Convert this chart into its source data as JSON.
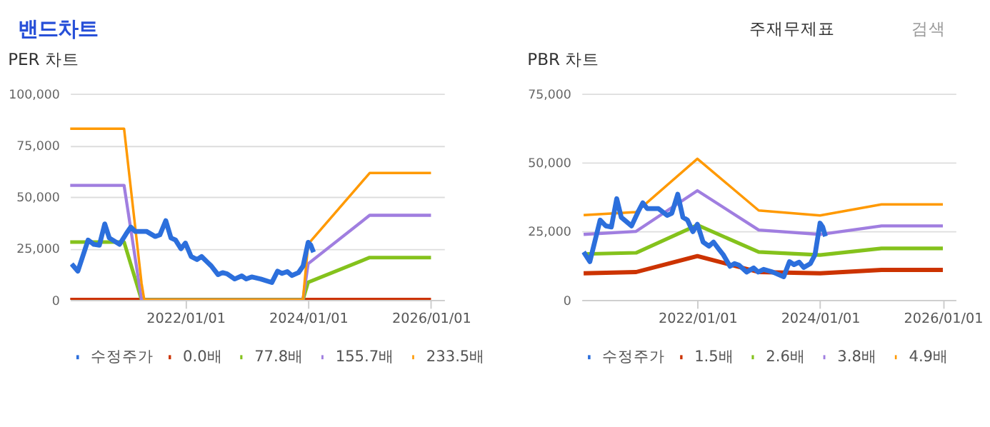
{
  "chart_data": [
    {
      "type": "other",
      "title": "밴드차트",
      "annotations": [
        "주재무제표",
        "검색"
      ]
    },
    {
      "type": "line",
      "title": "PER 차트",
      "xlim": [
        "2020-02-15",
        "2026-03-20"
      ],
      "ylim": [
        0,
        100000
      ],
      "xticks": [
        {
          "value": "2022-01-01",
          "label": "2022/01/01"
        },
        {
          "value": "2024-01-01",
          "label": "2024/01/01"
        },
        {
          "value": "2026-01-01",
          "label": "2026/01/01"
        }
      ],
      "yticks": [
        0,
        {
          "value": 25000,
          "label": "25,000"
        },
        {
          "value": 50000,
          "label": "50,000"
        },
        {
          "value": 75000,
          "label": "75,000"
        },
        {
          "value": 100000,
          "label": "100,000"
        }
      ],
      "grid": "y",
      "legend": "bottom",
      "series": [
        {
          "name": "수정주가",
          "color": "#2c6fdc",
          "x": [
            "2020-02-24",
            "2020-04-01",
            "2020-06-01",
            "2020-07-05",
            "2020-08-07",
            "2020-09-08",
            "2020-10-05",
            "2020-12-05",
            "2021-01-14",
            "2021-02-10",
            "2021-03-08",
            "2021-05-14",
            "2021-07-05",
            "2021-08-02",
            "2021-09-06",
            "2021-10-07",
            "2021-11-03",
            "2021-12-05",
            "2022-01-01",
            "2022-02-04",
            "2022-03-11",
            "2022-04-07",
            "2022-05-08",
            "2022-06-04",
            "2022-07-14",
            "2022-08-10",
            "2022-09-06",
            "2022-10-21",
            "2022-12-02",
            "2022-12-29",
            "2023-01-30",
            "2023-03-25",
            "2023-05-30",
            "2023-07-03",
            "2023-07-30",
            "2023-08-30",
            "2023-09-26",
            "2023-11-05",
            "2023-12-02",
            "2024-01-01",
            "2024-01-17",
            "2024-02-02"
          ],
          "values": [
            17400,
            13900,
            29000,
            26900,
            26500,
            36800,
            30000,
            26900,
            32100,
            35300,
            33200,
            33200,
            30700,
            31500,
            38400,
            30000,
            29000,
            24800,
            27500,
            21000,
            19500,
            21000,
            18500,
            16400,
            12200,
            13200,
            12600,
            10100,
            11600,
            10100,
            11100,
            10100,
            8400,
            13900,
            12800,
            13700,
            11800,
            13200,
            16400,
            27900,
            26500,
            23100
          ]
        },
        {
          "name": "0.0배",
          "color": "#cc3300",
          "x": [
            "2020-02-15",
            "2026-01-01"
          ],
          "values": [
            0,
            0
          ]
        },
        {
          "name": "77.8배",
          "color": "#84c21c",
          "x": [
            "2020-02-15",
            "2021-01-01",
            "2021-04-15",
            "2023-12-01",
            "2024-01-01",
            "2025-01-01",
            "2026-01-01"
          ],
          "values": [
            28000,
            28000,
            0,
            0,
            8500,
            20500,
            20500
          ]
        },
        {
          "name": "155.7배",
          "color": "#a07ee0",
          "x": [
            "2020-02-15",
            "2021-01-01",
            "2021-04-15",
            "2023-12-01",
            "2024-01-01",
            "2025-01-01",
            "2026-01-01"
          ],
          "values": [
            55500,
            55500,
            0,
            0,
            17500,
            41000,
            41000
          ]
        },
        {
          "name": "233.5배",
          "color": "#ff9900",
          "x": [
            "2020-02-15",
            "2021-01-01",
            "2021-04-15",
            "2021-05-01",
            "2023-12-01",
            "2024-01-01",
            "2025-01-01",
            "2026-01-01"
          ],
          "values": [
            83000,
            83000,
            8000,
            0,
            0,
            27000,
            61500,
            61500
          ]
        }
      ]
    },
    {
      "type": "line",
      "title": "PBR 차트",
      "xlim": [
        "2020-02-12",
        "2026-03-18"
      ],
      "ylim": [
        0,
        75000
      ],
      "xticks": [
        {
          "value": "2022-01-01",
          "label": "2022/01/01"
        },
        {
          "value": "2024-01-01",
          "label": "2024/01/01"
        },
        {
          "value": "2026-01-01",
          "label": "2026/01/01"
        }
      ],
      "yticks": [
        0,
        {
          "value": 25000,
          "label": "25,000"
        },
        {
          "value": 50000,
          "label": "50,000"
        },
        {
          "value": 75000,
          "label": "75,000"
        }
      ],
      "grid": "y",
      "legend": "bottom",
      "series": [
        {
          "name": "수정주가",
          "color": "#2c6fdc",
          "x": [
            "2020-02-24",
            "2020-04-01",
            "2020-06-01",
            "2020-07-05",
            "2020-08-07",
            "2020-09-08",
            "2020-10-05",
            "2020-12-05",
            "2021-01-14",
            "2021-02-10",
            "2021-03-08",
            "2021-05-14",
            "2021-07-05",
            "2021-08-02",
            "2021-09-06",
            "2021-10-07",
            "2021-11-03",
            "2021-12-05",
            "2022-01-01",
            "2022-02-04",
            "2022-03-11",
            "2022-04-07",
            "2022-05-08",
            "2022-06-04",
            "2022-07-14",
            "2022-08-10",
            "2022-09-06",
            "2022-10-21",
            "2022-12-02",
            "2022-12-29",
            "2023-01-30",
            "2023-03-25",
            "2023-05-30",
            "2023-07-03",
            "2023-07-30",
            "2023-08-30",
            "2023-09-26",
            "2023-11-05",
            "2023-12-02",
            "2024-01-01",
            "2024-01-17",
            "2024-02-02"
          ],
          "values": [
            17400,
            13900,
            29000,
            26900,
            26500,
            36800,
            30000,
            26900,
            32100,
            35300,
            33200,
            33200,
            30700,
            31500,
            38400,
            30000,
            29000,
            24800,
            27500,
            21000,
            19500,
            21000,
            18500,
            16400,
            12200,
            13200,
            12600,
            10100,
            11600,
            10100,
            11100,
            10100,
            8400,
            13900,
            12800,
            13700,
            11800,
            13200,
            16400,
            27900,
            26500,
            23100
          ]
        },
        {
          "name": "1.5배",
          "color": "#cc3300",
          "x": [
            "2020-02-24",
            "2021-01-01",
            "2022-01-01",
            "2023-01-01",
            "2024-01-01",
            "2025-01-01",
            "2026-01-01"
          ],
          "values": [
            9650,
            10100,
            15900,
            10100,
            9650,
            10900,
            10900
          ]
        },
        {
          "name": "2.6배",
          "color": "#84c21c",
          "x": [
            "2020-02-24",
            "2021-01-01",
            "2022-01-01",
            "2023-01-01",
            "2024-01-01",
            "2025-01-01",
            "2026-01-01"
          ],
          "values": [
            16650,
            17100,
            27200,
            17400,
            16300,
            18700,
            18700
          ]
        },
        {
          "name": "3.8배",
          "color": "#a07ee0",
          "x": [
            "2020-02-24",
            "2021-01-01",
            "2022-01-01",
            "2023-01-01",
            "2024-01-01",
            "2025-01-01",
            "2026-01-01"
          ],
          "values": [
            23800,
            24900,
            39700,
            25400,
            23800,
            26900,
            26900
          ]
        },
        {
          "name": "4.9배",
          "color": "#ff9900",
          "x": [
            "2020-02-24",
            "2021-01-01",
            "2022-01-01",
            "2023-01-01",
            "2024-01-01",
            "2025-01-01",
            "2026-01-01"
          ],
          "values": [
            30800,
            31900,
            51300,
            32500,
            30700,
            34700,
            34700
          ]
        }
      ]
    }
  ]
}
